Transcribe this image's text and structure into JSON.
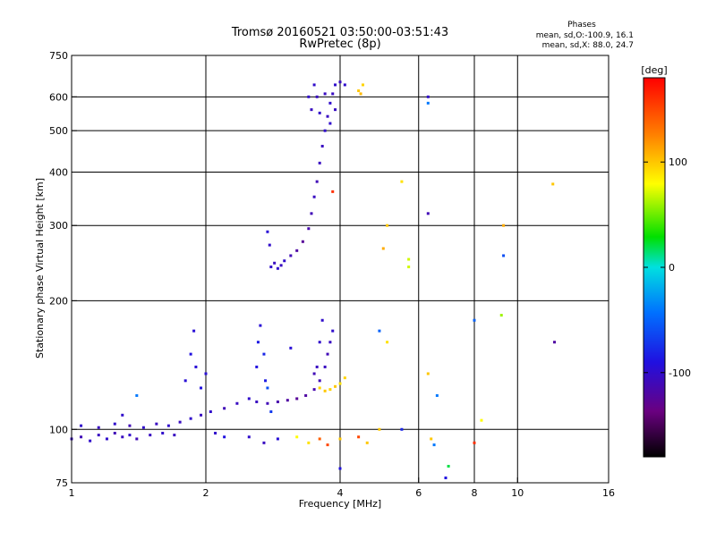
{
  "chart_data": {
    "type": "scatter",
    "title": "Tromsø 20160521 03:50:00-03:51:43",
    "subtitle": "RwPretec (8p)",
    "xlabel": "Frequency [MHz]",
    "ylabel": "Stationary phase Virtual Height [km]",
    "x_scale": "log",
    "y_scale": "log",
    "xlim": [
      1,
      16
    ],
    "ylim": [
      75,
      750
    ],
    "x_ticks": [
      1,
      2,
      4,
      6,
      8,
      10,
      16
    ],
    "x_tick_labels": [
      "1",
      "2",
      "4",
      "6",
      "8",
      "10",
      "16"
    ],
    "x_gridlines": [
      2,
      4,
      6,
      8,
      10
    ],
    "y_ticks": [
      75,
      100,
      200,
      300,
      400,
      500,
      600,
      750
    ],
    "y_tick_labels": [
      "75",
      "100",
      "200",
      "300",
      "400",
      "500",
      "600",
      "750"
    ],
    "y_gridlines": [
      100,
      200,
      300,
      400,
      500,
      600
    ],
    "grid": true,
    "stats": {
      "heading": "Phases",
      "line_o": "mean, sd,O:-100.9, 16.1",
      "line_x": "mean, sd,X:  88.0, 24.7"
    },
    "colorbar": {
      "title": "[deg]",
      "range": [
        -180,
        180
      ],
      "ticks": [
        100,
        0,
        -100
      ],
      "tick_labels": [
        "100",
        "0",
        "-100"
      ],
      "colormap": "rainbow (black-purple-blue-cyan-green-yellow-orange-red)"
    },
    "series": [
      {
        "values": [
          {
            "x": 1.0,
            "y": 95,
            "phase": -105
          },
          {
            "x": 1.05,
            "y": 96,
            "phase": -110
          },
          {
            "x": 1.1,
            "y": 94,
            "phase": -100
          },
          {
            "x": 1.15,
            "y": 97,
            "phase": -105
          },
          {
            "x": 1.2,
            "y": 95,
            "phase": -100
          },
          {
            "x": 1.25,
            "y": 98,
            "phase": -110
          },
          {
            "x": 1.3,
            "y": 96,
            "phase": -105
          },
          {
            "x": 1.35,
            "y": 97,
            "phase": -100
          },
          {
            "x": 1.4,
            "y": 95,
            "phase": -110
          },
          {
            "x": 1.5,
            "y": 97,
            "phase": -105
          },
          {
            "x": 1.6,
            "y": 98,
            "phase": -100
          },
          {
            "x": 1.7,
            "y": 97,
            "phase": -105
          },
          {
            "x": 1.05,
            "y": 102,
            "phase": -100
          },
          {
            "x": 1.15,
            "y": 101,
            "phase": -105
          },
          {
            "x": 1.25,
            "y": 103,
            "phase": -100
          },
          {
            "x": 1.35,
            "y": 102,
            "phase": -110
          },
          {
            "x": 1.45,
            "y": 101,
            "phase": -100
          },
          {
            "x": 1.55,
            "y": 103,
            "phase": -105
          },
          {
            "x": 1.65,
            "y": 102,
            "phase": -100
          },
          {
            "x": 1.75,
            "y": 104,
            "phase": -105
          },
          {
            "x": 1.85,
            "y": 106,
            "phase": -100
          },
          {
            "x": 1.95,
            "y": 108,
            "phase": -105
          },
          {
            "x": 2.05,
            "y": 110,
            "phase": -100
          },
          {
            "x": 2.2,
            "y": 112,
            "phase": -110
          },
          {
            "x": 2.35,
            "y": 115,
            "phase": -105
          },
          {
            "x": 2.5,
            "y": 118,
            "phase": -100
          },
          {
            "x": 2.6,
            "y": 116,
            "phase": -105
          },
          {
            "x": 2.75,
            "y": 115,
            "phase": -110
          },
          {
            "x": 2.9,
            "y": 116,
            "phase": -115
          },
          {
            "x": 3.05,
            "y": 117,
            "phase": -120
          },
          {
            "x": 3.2,
            "y": 118,
            "phase": -125
          },
          {
            "x": 3.35,
            "y": 120,
            "phase": -120
          },
          {
            "x": 3.5,
            "y": 124,
            "phase": -115
          },
          {
            "x": 3.6,
            "y": 130,
            "phase": -110
          },
          {
            "x": 3.7,
            "y": 140,
            "phase": -105
          },
          {
            "x": 3.75,
            "y": 150,
            "phase": -110
          },
          {
            "x": 3.8,
            "y": 160,
            "phase": -105
          },
          {
            "x": 3.85,
            "y": 170,
            "phase": -100
          },
          {
            "x": 1.8,
            "y": 130,
            "phase": -95
          },
          {
            "x": 1.85,
            "y": 150,
            "phase": -90
          },
          {
            "x": 1.88,
            "y": 170,
            "phase": -95
          },
          {
            "x": 1.9,
            "y": 140,
            "phase": -95
          },
          {
            "x": 1.95,
            "y": 125,
            "phase": -90
          },
          {
            "x": 2.0,
            "y": 135,
            "phase": -95
          },
          {
            "x": 2.6,
            "y": 140,
            "phase": -90
          },
          {
            "x": 2.62,
            "y": 160,
            "phase": -85
          },
          {
            "x": 2.65,
            "y": 175,
            "phase": -95
          },
          {
            "x": 2.7,
            "y": 150,
            "phase": -80
          },
          {
            "x": 2.72,
            "y": 130,
            "phase": -85
          },
          {
            "x": 2.75,
            "y": 125,
            "phase": -60
          },
          {
            "x": 2.8,
            "y": 110,
            "phase": -70
          },
          {
            "x": 3.1,
            "y": 155,
            "phase": -95
          },
          {
            "x": 3.6,
            "y": 160,
            "phase": -100
          },
          {
            "x": 3.65,
            "y": 180,
            "phase": -100
          },
          {
            "x": 3.55,
            "y": 140,
            "phase": -105
          },
          {
            "x": 3.5,
            "y": 135,
            "phase": -110
          },
          {
            "x": 3.6,
            "y": 125,
            "phase": 95
          },
          {
            "x": 3.7,
            "y": 123,
            "phase": 100
          },
          {
            "x": 3.8,
            "y": 124,
            "phase": 95
          },
          {
            "x": 3.9,
            "y": 126,
            "phase": 100
          },
          {
            "x": 4.0,
            "y": 128,
            "phase": 90
          },
          {
            "x": 4.1,
            "y": 132,
            "phase": 95
          },
          {
            "x": 2.1,
            "y": 98,
            "phase": -100
          },
          {
            "x": 2.2,
            "y": 96,
            "phase": -90
          },
          {
            "x": 2.5,
            "y": 96,
            "phase": -100
          },
          {
            "x": 2.7,
            "y": 93,
            "phase": -105
          },
          {
            "x": 2.9,
            "y": 95,
            "phase": -95
          },
          {
            "x": 3.2,
            "y": 96,
            "phase": 80
          },
          {
            "x": 3.4,
            "y": 93,
            "phase": 90
          },
          {
            "x": 3.6,
            "y": 95,
            "phase": 140
          },
          {
            "x": 3.75,
            "y": 92,
            "phase": 150
          },
          {
            "x": 4.0,
            "y": 95,
            "phase": 100
          },
          {
            "x": 4.4,
            "y": 96,
            "phase": 150
          },
          {
            "x": 4.6,
            "y": 93,
            "phase": 100
          },
          {
            "x": 2.8,
            "y": 240,
            "phase": -100
          },
          {
            "x": 2.85,
            "y": 245,
            "phase": -105
          },
          {
            "x": 2.9,
            "y": 238,
            "phase": -100
          },
          {
            "x": 2.95,
            "y": 242,
            "phase": -105
          },
          {
            "x": 3.0,
            "y": 248,
            "phase": -100
          },
          {
            "x": 3.1,
            "y": 255,
            "phase": -110
          },
          {
            "x": 3.2,
            "y": 262,
            "phase": -120
          },
          {
            "x": 3.3,
            "y": 275,
            "phase": -125
          },
          {
            "x": 3.4,
            "y": 295,
            "phase": -115
          },
          {
            "x": 3.45,
            "y": 320,
            "phase": -110
          },
          {
            "x": 3.5,
            "y": 350,
            "phase": -105
          },
          {
            "x": 3.55,
            "y": 380,
            "phase": -110
          },
          {
            "x": 3.6,
            "y": 420,
            "phase": -105
          },
          {
            "x": 3.65,
            "y": 460,
            "phase": -105
          },
          {
            "x": 3.7,
            "y": 500,
            "phase": -100
          },
          {
            "x": 3.75,
            "y": 540,
            "phase": -105
          },
          {
            "x": 3.8,
            "y": 580,
            "phase": -100
          },
          {
            "x": 3.85,
            "y": 610,
            "phase": -105
          },
          {
            "x": 3.9,
            "y": 640,
            "phase": -100
          },
          {
            "x": 4.0,
            "y": 650,
            "phase": -105
          },
          {
            "x": 4.1,
            "y": 640,
            "phase": -100
          },
          {
            "x": 2.75,
            "y": 290,
            "phase": -95
          },
          {
            "x": 2.78,
            "y": 270,
            "phase": -100
          },
          {
            "x": 3.4,
            "y": 600,
            "phase": -100
          },
          {
            "x": 3.45,
            "y": 560,
            "phase": -105
          },
          {
            "x": 3.5,
            "y": 640,
            "phase": -100
          },
          {
            "x": 3.55,
            "y": 600,
            "phase": -105
          },
          {
            "x": 3.6,
            "y": 550,
            "phase": -100
          },
          {
            "x": 3.7,
            "y": 610,
            "phase": -105
          },
          {
            "x": 3.8,
            "y": 520,
            "phase": -100
          },
          {
            "x": 3.9,
            "y": 560,
            "phase": -105
          },
          {
            "x": 4.4,
            "y": 620,
            "phase": 100
          },
          {
            "x": 4.5,
            "y": 640,
            "phase": 95
          },
          {
            "x": 4.45,
            "y": 610,
            "phase": 105
          },
          {
            "x": 6.3,
            "y": 600,
            "phase": -100
          },
          {
            "x": 6.3,
            "y": 580,
            "phase": -40
          },
          {
            "x": 6.3,
            "y": 320,
            "phase": -110
          },
          {
            "x": 3.85,
            "y": 360,
            "phase": 160
          },
          {
            "x": 5.5,
            "y": 380,
            "phase": 90
          },
          {
            "x": 5.1,
            "y": 300,
            "phase": 100
          },
          {
            "x": 5.0,
            "y": 265,
            "phase": 110
          },
          {
            "x": 5.7,
            "y": 250,
            "phase": 70
          },
          {
            "x": 5.7,
            "y": 240,
            "phase": 70
          },
          {
            "x": 9.3,
            "y": 300,
            "phase": 110
          },
          {
            "x": 9.3,
            "y": 255,
            "phase": -60
          },
          {
            "x": 8.0,
            "y": 180,
            "phase": -50
          },
          {
            "x": 9.2,
            "y": 185,
            "phase": 60
          },
          {
            "x": 12.0,
            "y": 375,
            "phase": 100
          },
          {
            "x": 12.1,
            "y": 160,
            "phase": -120
          },
          {
            "x": 6.3,
            "y": 135,
            "phase": 100
          },
          {
            "x": 6.6,
            "y": 120,
            "phase": -40
          },
          {
            "x": 4.9,
            "y": 170,
            "phase": -50
          },
          {
            "x": 5.1,
            "y": 160,
            "phase": 90
          },
          {
            "x": 4.9,
            "y": 100,
            "phase": 100
          },
          {
            "x": 5.5,
            "y": 100,
            "phase": -80
          },
          {
            "x": 6.4,
            "y": 95,
            "phase": 100
          },
          {
            "x": 6.5,
            "y": 92,
            "phase": -40
          },
          {
            "x": 8.0,
            "y": 93,
            "phase": 160
          },
          {
            "x": 8.3,
            "y": 105,
            "phase": 80
          },
          {
            "x": 4.0,
            "y": 81,
            "phase": -90
          },
          {
            "x": 6.9,
            "y": 77,
            "phase": -90
          },
          {
            "x": 7.0,
            "y": 82,
            "phase": 20
          },
          {
            "x": 1.4,
            "y": 120,
            "phase": -40
          },
          {
            "x": 1.3,
            "y": 108,
            "phase": -100
          }
        ]
      }
    ]
  }
}
